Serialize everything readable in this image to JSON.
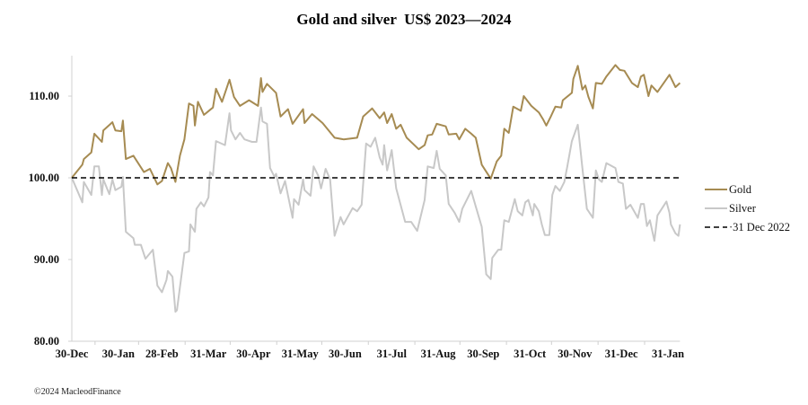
{
  "chart_data": {
    "type": "line",
    "title": "Gold and silver  US$ 2023—2024",
    "xlabel": "",
    "ylabel": "",
    "ylim": [
      80,
      115
    ],
    "yticks": [
      "80.00",
      "90.00",
      "100.00",
      "110.00"
    ],
    "ytick_values": [
      80,
      90,
      100,
      110
    ],
    "xticks": [
      "30-Dec",
      "30-Jan",
      "28-Feb",
      "31-Mar",
      "30-Apr",
      "31-May",
      "30-Jun",
      "31-Jul",
      "31-Aug",
      "30-Sep",
      "31-Oct",
      "30-Nov",
      "31-Dec",
      "31-Jan"
    ],
    "xtick_dates": [
      "2022-12-30",
      "2023-01-30",
      "2023-02-28",
      "2023-03-31",
      "2023-04-30",
      "2023-05-31",
      "2023-06-30",
      "2023-07-31",
      "2023-08-31",
      "2023-09-30",
      "2023-10-31",
      "2023-11-30",
      "2023-12-31",
      "2024-01-31"
    ],
    "xlim": [
      "2022-12-30",
      "2024-02-08"
    ],
    "grid": false,
    "legend": "right",
    "series": [
      {
        "name": "Gold",
        "color": "#a68b52",
        "points": [
          [
            "2022-12-30",
            100.0
          ],
          [
            "2023-01-06",
            101.6
          ],
          [
            "2023-01-07",
            102.3
          ],
          [
            "2023-01-12",
            103.1
          ],
          [
            "2023-01-14",
            105.4
          ],
          [
            "2023-01-19",
            104.4
          ],
          [
            "2023-01-20",
            105.8
          ],
          [
            "2023-01-26",
            106.8
          ],
          [
            "2023-01-28",
            105.8
          ],
          [
            "2023-02-01",
            105.7
          ],
          [
            "2023-02-02",
            107.0
          ],
          [
            "2023-02-04",
            102.3
          ],
          [
            "2023-02-09",
            102.7
          ],
          [
            "2023-02-16",
            100.7
          ],
          [
            "2023-02-20",
            101.1
          ],
          [
            "2023-02-25",
            99.2
          ],
          [
            "2023-02-28",
            99.6
          ],
          [
            "2023-03-04",
            101.8
          ],
          [
            "2023-03-06",
            101.2
          ],
          [
            "2023-03-09",
            99.5
          ],
          [
            "2023-03-12",
            102.7
          ],
          [
            "2023-03-15",
            104.7
          ],
          [
            "2023-03-18",
            109.1
          ],
          [
            "2023-03-21",
            108.8
          ],
          [
            "2023-03-22",
            106.4
          ],
          [
            "2023-03-24",
            109.3
          ],
          [
            "2023-03-28",
            107.7
          ],
          [
            "2023-04-03",
            108.6
          ],
          [
            "2023-04-05",
            110.9
          ],
          [
            "2023-04-09",
            109.3
          ],
          [
            "2023-04-14",
            112.0
          ],
          [
            "2023-04-17",
            109.9
          ],
          [
            "2023-04-21",
            108.8
          ],
          [
            "2023-04-27",
            109.5
          ],
          [
            "2023-05-03",
            108.8
          ],
          [
            "2023-05-05",
            112.2
          ],
          [
            "2023-05-06",
            110.5
          ],
          [
            "2023-05-09",
            111.5
          ],
          [
            "2023-05-15",
            110.4
          ],
          [
            "2023-05-18",
            107.5
          ],
          [
            "2023-05-23",
            108.4
          ],
          [
            "2023-05-26",
            106.6
          ],
          [
            "2023-06-02",
            108.4
          ],
          [
            "2023-06-03",
            106.7
          ],
          [
            "2023-06-08",
            107.8
          ],
          [
            "2023-06-15",
            106.7
          ],
          [
            "2023-06-23",
            104.9
          ],
          [
            "2023-06-29",
            104.7
          ],
          [
            "2023-07-08",
            104.9
          ],
          [
            "2023-07-12",
            107.5
          ],
          [
            "2023-07-18",
            108.5
          ],
          [
            "2023-07-23",
            107.3
          ],
          [
            "2023-07-26",
            108.0
          ],
          [
            "2023-07-28",
            106.7
          ],
          [
            "2023-07-31",
            107.8
          ],
          [
            "2023-08-03",
            106.0
          ],
          [
            "2023-08-06",
            106.5
          ],
          [
            "2023-08-10",
            104.9
          ],
          [
            "2023-08-18",
            103.5
          ],
          [
            "2023-08-22",
            104.0
          ],
          [
            "2023-08-24",
            105.2
          ],
          [
            "2023-08-27",
            105.3
          ],
          [
            "2023-08-30",
            106.6
          ],
          [
            "2023-09-05",
            106.3
          ],
          [
            "2023-09-07",
            105.3
          ],
          [
            "2023-09-12",
            105.4
          ],
          [
            "2023-09-14",
            104.7
          ],
          [
            "2023-09-18",
            106.0
          ],
          [
            "2023-09-22",
            105.4
          ],
          [
            "2023-09-25",
            104.9
          ],
          [
            "2023-09-29",
            101.6
          ],
          [
            "2023-10-05",
            99.9
          ],
          [
            "2023-10-09",
            102.0
          ],
          [
            "2023-10-12",
            102.7
          ],
          [
            "2023-10-14",
            106.0
          ],
          [
            "2023-10-17",
            105.5
          ],
          [
            "2023-10-20",
            108.7
          ],
          [
            "2023-10-25",
            108.2
          ],
          [
            "2023-10-27",
            110.0
          ],
          [
            "2023-11-01",
            108.8
          ],
          [
            "2023-11-06",
            108.0
          ],
          [
            "2023-11-09",
            107.1
          ],
          [
            "2023-11-11",
            106.4
          ],
          [
            "2023-11-14",
            107.5
          ],
          [
            "2023-11-17",
            108.7
          ],
          [
            "2023-11-21",
            108.6
          ],
          [
            "2023-11-22",
            109.5
          ],
          [
            "2023-11-28",
            110.4
          ],
          [
            "2023-11-29",
            112.1
          ],
          [
            "2023-12-02",
            113.7
          ],
          [
            "2023-12-05",
            110.8
          ],
          [
            "2023-12-07",
            111.3
          ],
          [
            "2023-12-09",
            109.9
          ],
          [
            "2023-12-12",
            108.5
          ],
          [
            "2023-12-14",
            111.6
          ],
          [
            "2023-12-18",
            111.5
          ],
          [
            "2023-12-21",
            112.4
          ],
          [
            "2023-12-27",
            113.8
          ],
          [
            "2023-12-30",
            113.2
          ],
          [
            "2024-01-02",
            113.1
          ],
          [
            "2024-01-07",
            111.6
          ],
          [
            "2024-01-11",
            111.1
          ],
          [
            "2024-01-13",
            112.4
          ],
          [
            "2024-01-15",
            112.6
          ],
          [
            "2024-01-18",
            110.0
          ],
          [
            "2024-01-20",
            111.3
          ],
          [
            "2024-01-24",
            110.5
          ],
          [
            "2024-02-01",
            112.6
          ],
          [
            "2024-02-05",
            111.1
          ],
          [
            "2024-02-08",
            111.6
          ]
        ]
      },
      {
        "name": "Silver",
        "color": "#c8c8c8",
        "points": [
          [
            "2022-12-30",
            100.0
          ],
          [
            "2023-01-06",
            97.0
          ],
          [
            "2023-01-07",
            99.5
          ],
          [
            "2023-01-12",
            97.9
          ],
          [
            "2023-01-14",
            101.4
          ],
          [
            "2023-01-17",
            101.4
          ],
          [
            "2023-01-19",
            97.9
          ],
          [
            "2023-01-20",
            99.8
          ],
          [
            "2023-01-24",
            98.0
          ],
          [
            "2023-01-26",
            99.8
          ],
          [
            "2023-01-28",
            98.5
          ],
          [
            "2023-02-01",
            98.9
          ],
          [
            "2023-02-02",
            100.1
          ],
          [
            "2023-02-04",
            93.4
          ],
          [
            "2023-02-09",
            92.6
          ],
          [
            "2023-02-10",
            91.8
          ],
          [
            "2023-02-14",
            91.8
          ],
          [
            "2023-02-17",
            90.1
          ],
          [
            "2023-02-22",
            91.2
          ],
          [
            "2023-02-25",
            86.8
          ],
          [
            "2023-02-28",
            86.0
          ],
          [
            "2023-03-03",
            87.5
          ],
          [
            "2023-03-04",
            88.6
          ],
          [
            "2023-03-07",
            87.9
          ],
          [
            "2023-03-09",
            83.6
          ],
          [
            "2023-03-10",
            83.8
          ],
          [
            "2023-03-15",
            90.8
          ],
          [
            "2023-03-18",
            91.0
          ],
          [
            "2023-03-19",
            94.3
          ],
          [
            "2023-03-22",
            93.4
          ],
          [
            "2023-03-23",
            96.2
          ],
          [
            "2023-03-26",
            97.0
          ],
          [
            "2023-03-28",
            96.5
          ],
          [
            "2023-03-31",
            97.6
          ],
          [
            "2023-04-01",
            100.7
          ],
          [
            "2023-04-03",
            100.3
          ],
          [
            "2023-04-05",
            104.5
          ],
          [
            "2023-04-11",
            104.0
          ],
          [
            "2023-04-14",
            107.9
          ],
          [
            "2023-04-15",
            105.8
          ],
          [
            "2023-04-18",
            104.7
          ],
          [
            "2023-04-21",
            105.5
          ],
          [
            "2023-04-24",
            104.7
          ],
          [
            "2023-04-29",
            104.4
          ],
          [
            "2023-05-02",
            104.4
          ],
          [
            "2023-05-05",
            108.6
          ],
          [
            "2023-05-06",
            106.9
          ],
          [
            "2023-05-09",
            106.6
          ],
          [
            "2023-05-11",
            101.2
          ],
          [
            "2023-05-14",
            100.1
          ],
          [
            "2023-05-15",
            100.5
          ],
          [
            "2023-05-18",
            98.1
          ],
          [
            "2023-05-21",
            99.6
          ],
          [
            "2023-05-26",
            95.1
          ],
          [
            "2023-05-27",
            97.4
          ],
          [
            "2023-05-30",
            96.7
          ],
          [
            "2023-06-02",
            99.8
          ],
          [
            "2023-06-03",
            98.5
          ],
          [
            "2023-06-07",
            97.8
          ],
          [
            "2023-06-09",
            101.4
          ],
          [
            "2023-06-12",
            100.3
          ],
          [
            "2023-06-14",
            98.7
          ],
          [
            "2023-06-17",
            101.1
          ],
          [
            "2023-06-20",
            99.8
          ],
          [
            "2023-06-23",
            92.9
          ],
          [
            "2023-06-27",
            95.2
          ],
          [
            "2023-06-29",
            94.3
          ],
          [
            "2023-07-05",
            96.3
          ],
          [
            "2023-07-08",
            95.9
          ],
          [
            "2023-07-11",
            96.7
          ],
          [
            "2023-07-14",
            104.2
          ],
          [
            "2023-07-17",
            103.8
          ],
          [
            "2023-07-20",
            104.9
          ],
          [
            "2023-07-23",
            102.5
          ],
          [
            "2023-07-25",
            101.6
          ],
          [
            "2023-07-26",
            104.0
          ],
          [
            "2023-07-28",
            100.9
          ],
          [
            "2023-07-31",
            103.4
          ],
          [
            "2023-08-03",
            98.7
          ],
          [
            "2023-08-09",
            94.6
          ],
          [
            "2023-08-13",
            94.6
          ],
          [
            "2023-08-17",
            93.5
          ],
          [
            "2023-08-22",
            97.3
          ],
          [
            "2023-08-24",
            101.4
          ],
          [
            "2023-08-28",
            101.2
          ],
          [
            "2023-08-30",
            103.3
          ],
          [
            "2023-09-01",
            101.1
          ],
          [
            "2023-09-05",
            100.3
          ],
          [
            "2023-09-07",
            96.8
          ],
          [
            "2023-09-11",
            95.7
          ],
          [
            "2023-09-14",
            94.6
          ],
          [
            "2023-09-16",
            96.2
          ],
          [
            "2023-09-22",
            98.4
          ],
          [
            "2023-09-25",
            96.5
          ],
          [
            "2023-09-29",
            94.0
          ],
          [
            "2023-10-02",
            88.2
          ],
          [
            "2023-10-05",
            87.6
          ],
          [
            "2023-10-06",
            90.2
          ],
          [
            "2023-10-10",
            91.2
          ],
          [
            "2023-10-12",
            91.2
          ],
          [
            "2023-10-14",
            94.8
          ],
          [
            "2023-10-17",
            94.6
          ],
          [
            "2023-10-21",
            97.4
          ],
          [
            "2023-10-23",
            95.9
          ],
          [
            "2023-10-26",
            95.4
          ],
          [
            "2023-10-28",
            97.0
          ],
          [
            "2023-10-30",
            97.3
          ],
          [
            "2023-11-02",
            95.4
          ],
          [
            "2023-11-03",
            96.8
          ],
          [
            "2023-11-06",
            95.9
          ],
          [
            "2023-11-08",
            94.3
          ],
          [
            "2023-11-10",
            93.0
          ],
          [
            "2023-11-13",
            93.0
          ],
          [
            "2023-11-15",
            97.9
          ],
          [
            "2023-11-17",
            99.0
          ],
          [
            "2023-11-20",
            98.4
          ],
          [
            "2023-11-23",
            99.5
          ],
          [
            "2023-11-25",
            101.4
          ],
          [
            "2023-11-28",
            104.5
          ],
          [
            "2023-12-02",
            106.5
          ],
          [
            "2023-12-05",
            101.2
          ],
          [
            "2023-12-08",
            96.2
          ],
          [
            "2023-12-12",
            95.1
          ],
          [
            "2023-12-14",
            100.9
          ],
          [
            "2023-12-16",
            99.8
          ],
          [
            "2023-12-18",
            99.5
          ],
          [
            "2023-12-21",
            101.8
          ],
          [
            "2023-12-27",
            101.2
          ],
          [
            "2023-12-29",
            99.5
          ],
          [
            "2024-01-01",
            99.3
          ],
          [
            "2024-01-03",
            96.2
          ],
          [
            "2024-01-06",
            96.7
          ],
          [
            "2024-01-11",
            95.1
          ],
          [
            "2024-01-13",
            96.8
          ],
          [
            "2024-01-15",
            96.8
          ],
          [
            "2024-01-17",
            94.1
          ],
          [
            "2024-01-19",
            94.8
          ],
          [
            "2024-01-22",
            92.3
          ],
          [
            "2024-01-24",
            95.4
          ],
          [
            "2024-01-30",
            97.1
          ],
          [
            "2024-02-01",
            95.7
          ],
          [
            "2024-02-02",
            94.3
          ],
          [
            "2024-02-05",
            93.2
          ],
          [
            "2024-02-07",
            92.9
          ],
          [
            "2024-02-08",
            94.3
          ]
        ]
      },
      {
        "name": "31 Dec 2022",
        "color": "#000000",
        "style": "dashed",
        "value": 100
      }
    ]
  },
  "footer": {
    "copyright": "©2024 MacleodFinance"
  }
}
